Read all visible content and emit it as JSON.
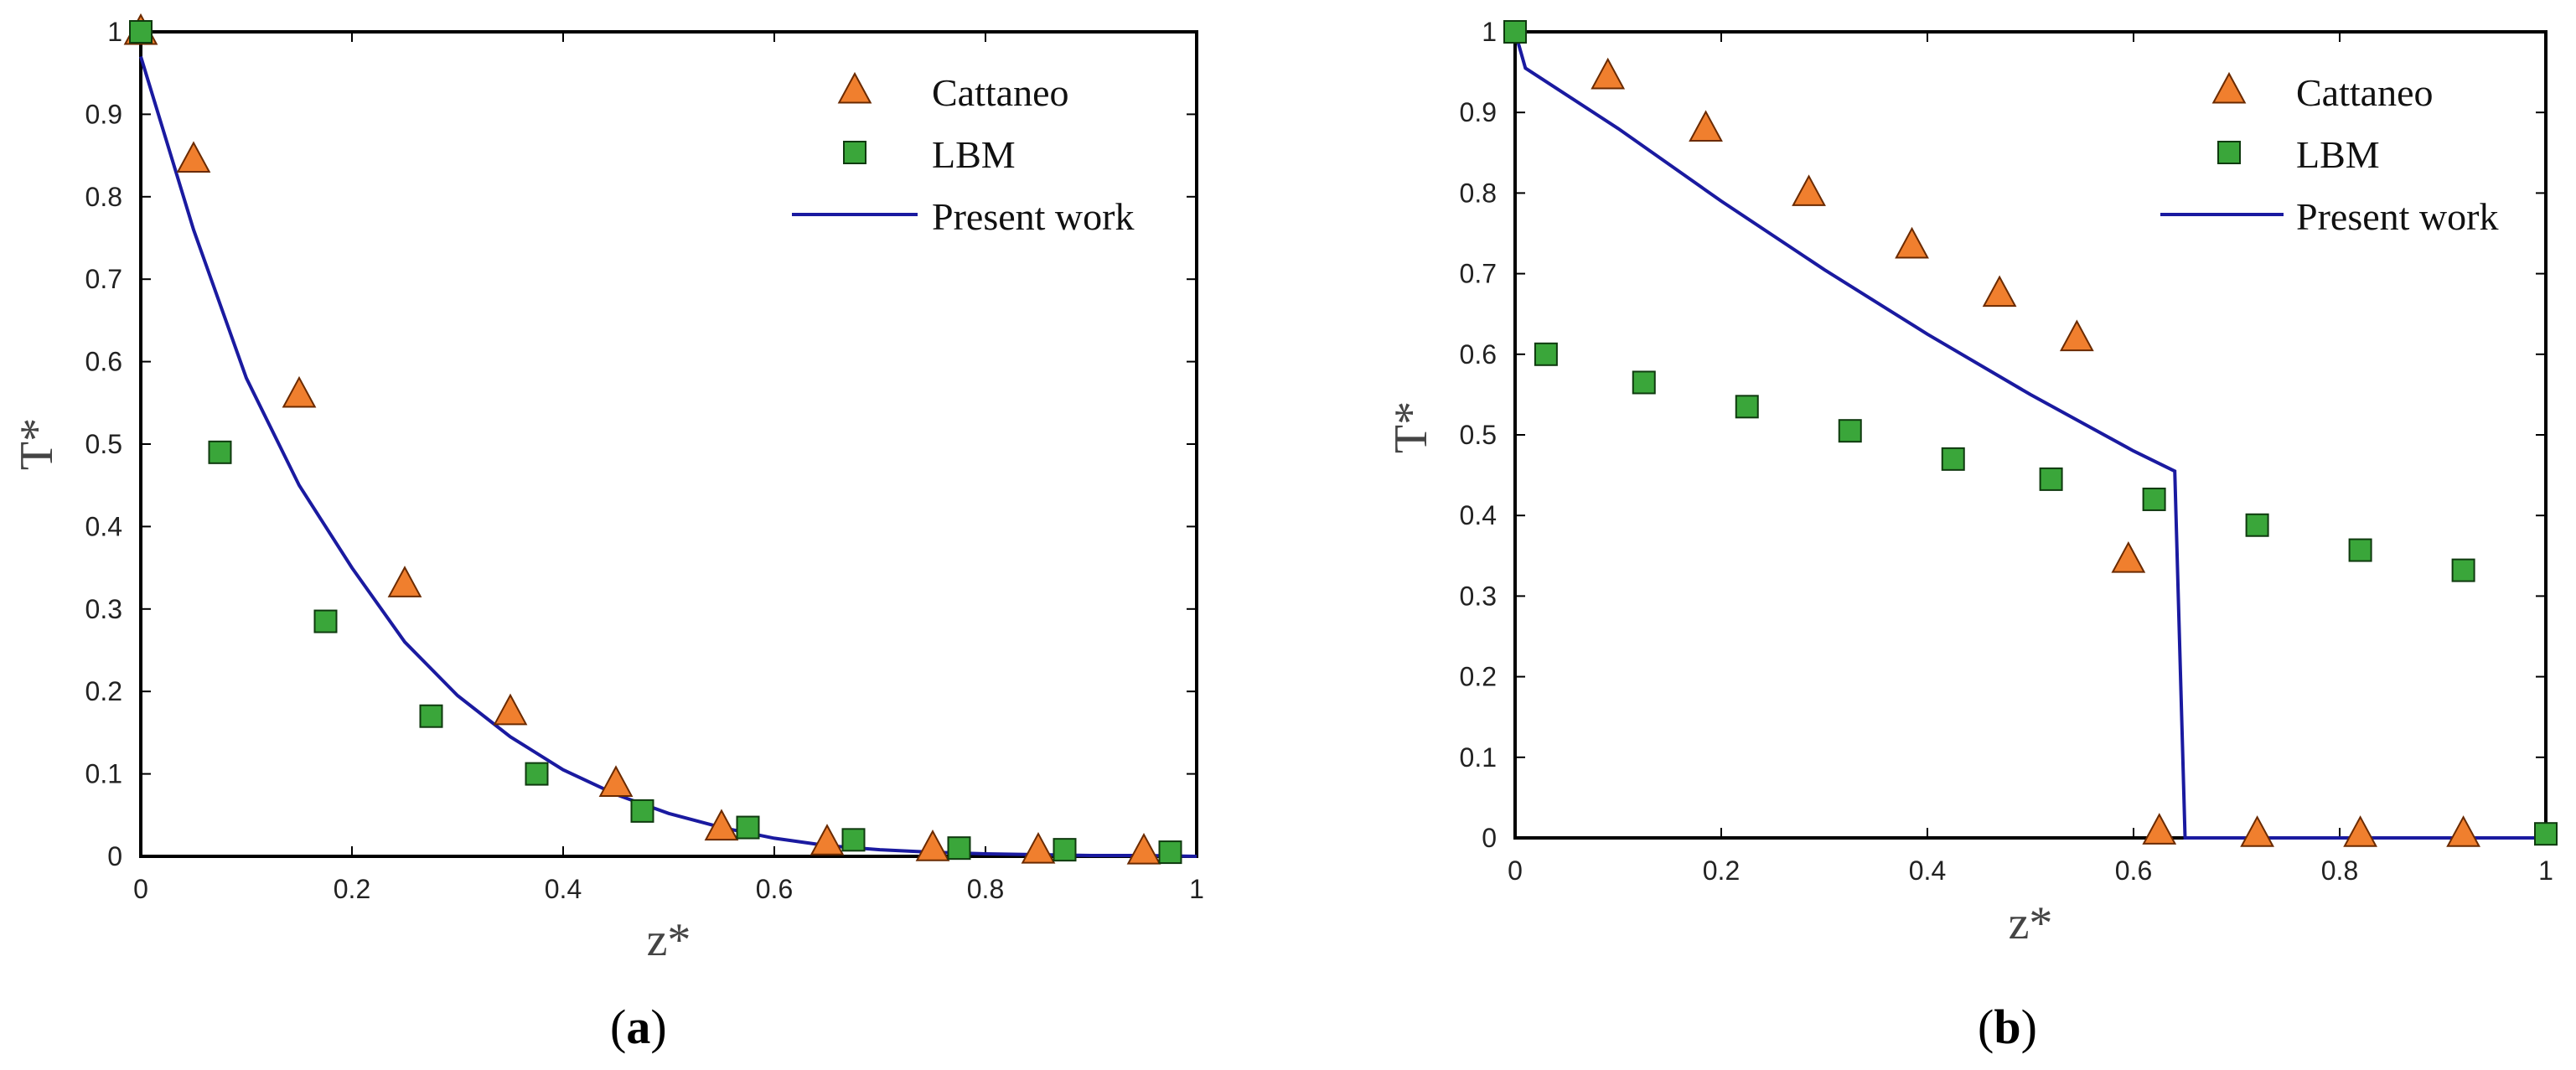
{
  "chart_data": [
    {
      "type": "scatter",
      "caption": "(a)",
      "caption_letter": "a",
      "caption_open": "(",
      "caption_close": ")",
      "xlabel": "z*",
      "ylabel": "T*",
      "xlim": [
        0,
        1
      ],
      "ylim": [
        0,
        1
      ],
      "xticks": [
        0,
        0.2,
        0.4,
        0.6,
        0.8,
        1
      ],
      "xtick_labels": [
        "0",
        "0.2",
        "0.4",
        "0.6",
        "0.8",
        "1"
      ],
      "yticks": [
        0,
        0.1,
        0.2,
        0.3,
        0.4,
        0.5,
        0.6,
        0.7,
        0.8,
        0.9,
        1
      ],
      "ytick_labels": [
        "0",
        "0.1",
        "0.2",
        "0.3",
        "0.4",
        "0.5",
        "0.6",
        "0.7",
        "0.8",
        "0.9",
        "1"
      ],
      "legend_position": "top-right",
      "series": [
        {
          "name": "Cattaneo",
          "marker": "triangle",
          "color": "#f07f2e",
          "x": [
            0.0,
            0.05,
            0.15,
            0.25,
            0.35,
            0.45,
            0.55,
            0.65,
            0.75,
            0.85,
            0.95
          ],
          "y": [
            1.0,
            0.845,
            0.56,
            0.33,
            0.175,
            0.088,
            0.035,
            0.017,
            0.01,
            0.007,
            0.006
          ]
        },
        {
          "name": "LBM",
          "marker": "square",
          "color": "#3aa63a",
          "x": [
            0.0,
            0.075,
            0.175,
            0.275,
            0.375,
            0.475,
            0.575,
            0.675,
            0.775,
            0.875,
            0.975
          ],
          "y": [
            1.0,
            0.49,
            0.285,
            0.17,
            0.1,
            0.055,
            0.035,
            0.02,
            0.01,
            0.008,
            0.005
          ]
        },
        {
          "name": "Present work",
          "marker": "line",
          "color": "#1a1aa0",
          "x": [
            0,
            0.05,
            0.1,
            0.15,
            0.2,
            0.25,
            0.3,
            0.35,
            0.4,
            0.45,
            0.5,
            0.55,
            0.6,
            0.65,
            0.7,
            0.75,
            0.8,
            0.85,
            0.9,
            0.95,
            1.0
          ],
          "y": [
            0.97,
            0.76,
            0.58,
            0.45,
            0.35,
            0.26,
            0.195,
            0.145,
            0.105,
            0.075,
            0.052,
            0.035,
            0.022,
            0.013,
            0.008,
            0.005,
            0.003,
            0.002,
            0.001,
            0.001,
            0.0
          ]
        }
      ]
    },
    {
      "type": "scatter",
      "caption": "(b)",
      "caption_letter": "b",
      "caption_open": "(",
      "caption_close": ")",
      "xlabel": "z*",
      "ylabel": "T*",
      "xlim": [
        0,
        1
      ],
      "ylim": [
        0,
        1
      ],
      "xticks": [
        0,
        0.2,
        0.4,
        0.6,
        0.8,
        1
      ],
      "xtick_labels": [
        "0",
        "0.2",
        "0.4",
        "0.6",
        "0.8",
        "1"
      ],
      "yticks": [
        0,
        0.1,
        0.2,
        0.3,
        0.4,
        0.5,
        0.6,
        0.7,
        0.8,
        0.9,
        1
      ],
      "ytick_labels": [
        "0",
        "0.1",
        "0.2",
        "0.3",
        "0.4",
        "0.5",
        "0.6",
        "0.7",
        "0.8",
        "0.9",
        "1"
      ],
      "legend_position": "top-right",
      "series": [
        {
          "name": "Cattaneo",
          "marker": "triangle",
          "color": "#f07f2e",
          "x": [
            0.09,
            0.185,
            0.285,
            0.385,
            0.47,
            0.545,
            0.595,
            0.625,
            0.72,
            0.82,
            0.92
          ],
          "y": [
            0.945,
            0.88,
            0.8,
            0.735,
            0.675,
            0.62,
            0.345,
            0.008,
            0.005,
            0.005,
            0.005
          ]
        },
        {
          "name": "LBM",
          "marker": "square",
          "color": "#3aa63a",
          "x": [
            0.0,
            0.03,
            0.125,
            0.225,
            0.325,
            0.425,
            0.52,
            0.62,
            0.72,
            0.82,
            0.92,
            1.0
          ],
          "y": [
            1.0,
            0.6,
            0.565,
            0.535,
            0.505,
            0.47,
            0.445,
            0.42,
            0.388,
            0.357,
            0.332,
            0.005
          ]
        },
        {
          "name": "Present work",
          "marker": "line",
          "color": "#1a1aa0",
          "x": [
            0,
            0.01,
            0.1,
            0.2,
            0.3,
            0.4,
            0.5,
            0.6,
            0.64,
            0.65,
            0.66,
            0.8,
            1.0
          ],
          "y": [
            1.0,
            0.955,
            0.88,
            0.79,
            0.705,
            0.625,
            0.55,
            0.48,
            0.455,
            0.0,
            0.0,
            0.0,
            0.0
          ]
        }
      ]
    }
  ]
}
